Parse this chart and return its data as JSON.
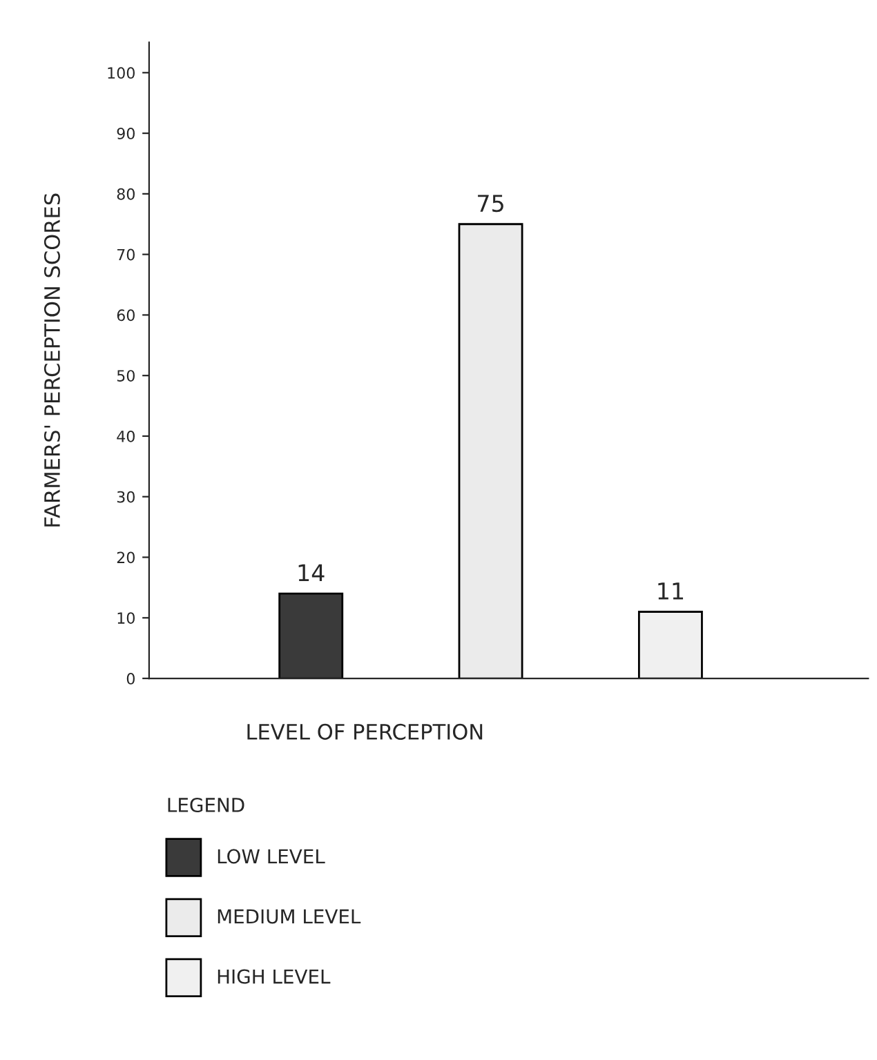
{
  "chart_data": {
    "type": "bar",
    "xlabel": "LEVEL OF PERCEPTION",
    "ylabel": "FARMERS' PERCEPTION SCORES",
    "categories": [
      null,
      null,
      null
    ],
    "series": [
      {
        "name": "LOW LEVEL",
        "color": "#3a3a3a",
        "values": [
          14,
          null,
          null
        ]
      },
      {
        "name": "MEDIUM LEVEL",
        "color": "#ebebeb",
        "values": [
          null,
          75,
          null
        ]
      },
      {
        "name": "HIGH LEVEL",
        "color": "#f0f0f0",
        "values": [
          null,
          null,
          11
        ]
      }
    ],
    "legend_title": "LEGEND",
    "legend": "bottom left",
    "ylim": [
      0,
      105
    ],
    "yticks": [
      0,
      10,
      20,
      30,
      40,
      50,
      60,
      70,
      80,
      90,
      100
    ],
    "data_labels": true,
    "grid": false
  }
}
